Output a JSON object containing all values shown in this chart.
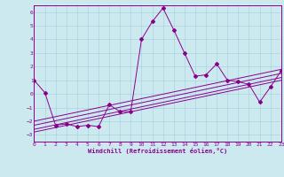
{
  "xlabel": "Windchill (Refroidissement éolien,°C)",
  "xlim": [
    0,
    23
  ],
  "ylim": [
    -3.5,
    6.5
  ],
  "yticks": [
    -3,
    -2,
    -1,
    0,
    1,
    2,
    3,
    4,
    5,
    6
  ],
  "xticks": [
    0,
    1,
    2,
    3,
    4,
    5,
    6,
    7,
    8,
    9,
    10,
    11,
    12,
    13,
    14,
    15,
    16,
    17,
    18,
    19,
    20,
    21,
    22,
    23
  ],
  "background_color": "#cce9f0",
  "line_color": "#8b008b",
  "grid_color": "#aad4e0",
  "series": [
    {
      "x": [
        0,
        1,
        2,
        3,
        4,
        5,
        6,
        7,
        8,
        9,
        10,
        11,
        12,
        13,
        14,
        15,
        16,
        17,
        18,
        19,
        20,
        21,
        22,
        23
      ],
      "y": [
        1.0,
        0.1,
        -2.3,
        -2.2,
        -2.4,
        -2.3,
        -2.4,
        -0.8,
        -1.3,
        -1.3,
        4.0,
        5.3,
        6.3,
        4.7,
        3.0,
        1.3,
        1.4,
        2.2,
        1.0,
        0.9,
        0.7,
        -0.6,
        0.5,
        1.7
      ]
    },
    {
      "x": [
        0,
        23
      ],
      "y": [
        -2.8,
        1.0
      ]
    },
    {
      "x": [
        0,
        23
      ],
      "y": [
        -2.6,
        1.2
      ]
    },
    {
      "x": [
        0,
        23
      ],
      "y": [
        -2.3,
        1.5
      ]
    },
    {
      "x": [
        0,
        23
      ],
      "y": [
        -2.0,
        1.8
      ]
    }
  ]
}
